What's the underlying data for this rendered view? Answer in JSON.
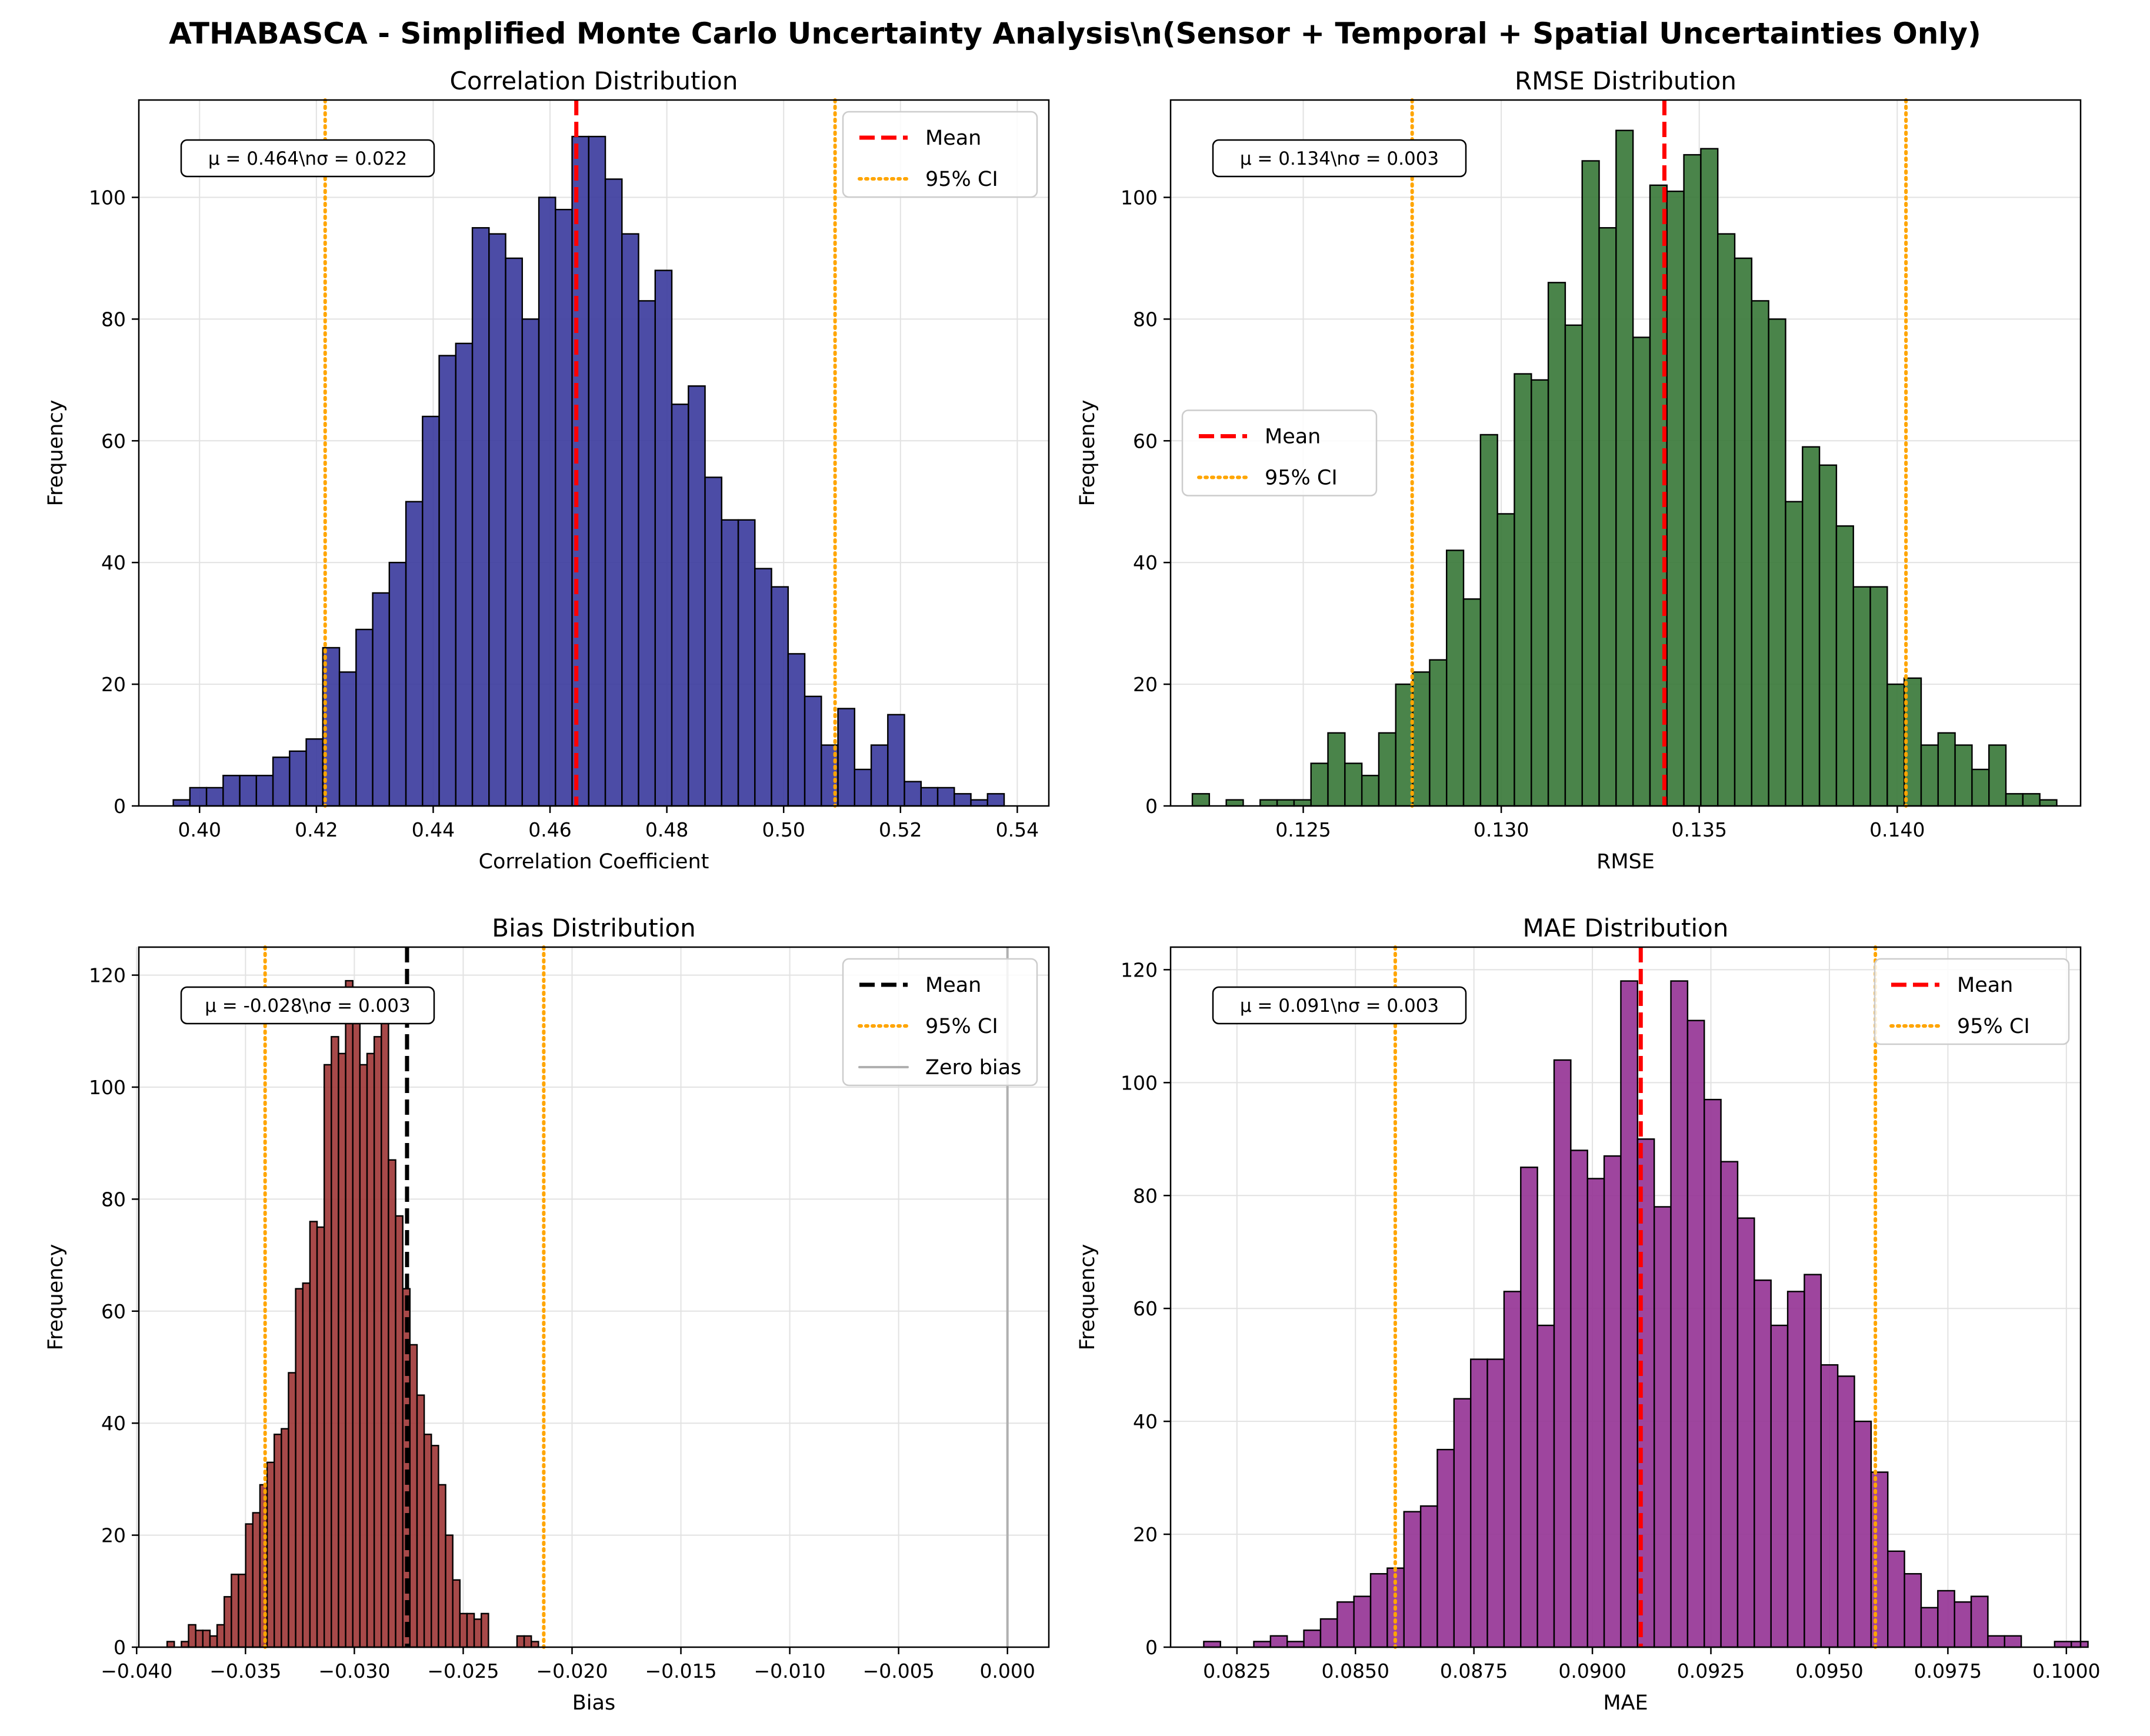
{
  "figure_title": "ATHABASCA - Simplified Monte Carlo Uncertainty Analysis\\n(Sensor + Temporal + Spatial Uncertainties Only)",
  "colors": {
    "ci": "#ffa500",
    "mean_red": "#ff0000",
    "mean_black": "#000000",
    "zero": "#b0b0b0"
  },
  "chart_data": [
    {
      "id": "corr",
      "type": "bar",
      "title": "Correlation Distribution",
      "xlabel": "Correlation Coefficient",
      "ylabel": "Frequency",
      "xlim": [
        0.3896,
        0.5454
      ],
      "ylim": [
        0,
        116
      ],
      "xticks": [
        0.4,
        0.42,
        0.44,
        0.46,
        0.48,
        0.5,
        0.52,
        0.54
      ],
      "xtick_labels": [
        "0.40",
        "0.42",
        "0.44",
        "0.46",
        "0.48",
        "0.50",
        "0.52",
        "0.54"
      ],
      "yticks": [
        0,
        20,
        40,
        60,
        80,
        100
      ],
      "ytick_labels": [
        "0",
        "20",
        "40",
        "60",
        "80",
        "100"
      ],
      "bar_color": "#3d3d9e",
      "bin_start": 0.3955,
      "bin_width": 0.002845,
      "counts": [
        1,
        3,
        3,
        5,
        5,
        5,
        8,
        9,
        11,
        26,
        22,
        29,
        35,
        40,
        50,
        64,
        74,
        76,
        95,
        94,
        90,
        80,
        100,
        98,
        110,
        110,
        103,
        94,
        83,
        88,
        66,
        69,
        54,
        47,
        47,
        39,
        36,
        25,
        18,
        10,
        16,
        6,
        10,
        15,
        4,
        3,
        3,
        2,
        1,
        2
      ],
      "mean": 0.4645,
      "ci": [
        0.4215,
        0.5088
      ],
      "mean_color": "#ff0000",
      "stats_text": "μ = 0.464\\nσ = 0.022",
      "legend": {
        "position": "upper-right",
        "items": [
          "Mean",
          "95% CI"
        ]
      }
    },
    {
      "id": "rmse",
      "type": "bar",
      "title": "RMSE Distribution",
      "xlabel": "RMSE",
      "ylabel": "Frequency",
      "xlim": [
        0.12165,
        0.14463
      ],
      "ylim": [
        0,
        116
      ],
      "xticks": [
        0.125,
        0.13,
        0.135,
        0.14
      ],
      "xtick_labels": [
        "0.125",
        "0.130",
        "0.135",
        "0.140"
      ],
      "yticks": [
        0,
        20,
        40,
        60,
        80,
        100
      ],
      "ytick_labels": [
        "0",
        "20",
        "40",
        "60",
        "80",
        "100"
      ],
      "bar_color": "#3b7a3b",
      "bin_start": 0.1222,
      "bin_width": 0.000428,
      "counts": [
        2,
        0,
        1,
        0,
        1,
        1,
        1,
        7,
        12,
        7,
        5,
        12,
        20,
        22,
        24,
        42,
        34,
        61,
        48,
        71,
        70,
        86,
        79,
        106,
        95,
        111,
        77,
        102,
        101,
        107,
        108,
        94,
        90,
        83,
        80,
        50,
        59,
        56,
        46,
        36,
        36,
        20,
        21,
        10,
        12,
        10,
        6,
        10,
        2,
        2,
        1
      ],
      "mean": 0.13412,
      "ci": [
        0.12775,
        0.14022
      ],
      "mean_color": "#ff0000",
      "stats_text": "μ = 0.134\\nσ = 0.003",
      "legend": {
        "position": "center-left",
        "items": [
          "Mean",
          "95% CI"
        ]
      }
    },
    {
      "id": "bias",
      "type": "bar",
      "title": "Bias Distribution",
      "xlabel": "Bias",
      "ylabel": "Frequency",
      "xlim": [
        -0.0399,
        0.0019
      ],
      "ylim": [
        0,
        125
      ],
      "xticks": [
        -0.04,
        -0.035,
        -0.03,
        -0.025,
        -0.02,
        -0.015,
        -0.01,
        -0.005,
        0.0
      ],
      "xtick_labels": [
        "−0.040",
        "−0.035",
        "−0.030",
        "−0.025",
        "−0.020",
        "−0.015",
        "−0.010",
        "−0.005",
        "0.000"
      ],
      "yticks": [
        0,
        20,
        40,
        60,
        80,
        100,
        120
      ],
      "ytick_labels": [
        "0",
        "20",
        "40",
        "60",
        "80",
        "100",
        "120"
      ],
      "bar_color": "#a03a3a",
      "bin_start": -0.0386,
      "bin_width": 0.000328,
      "counts": [
        1,
        0,
        1,
        4,
        3,
        3,
        2,
        4,
        9,
        13,
        13,
        22,
        24,
        29,
        33,
        38,
        39,
        49,
        64,
        65,
        76,
        75,
        104,
        109,
        106,
        119,
        115,
        104,
        106,
        109,
        112,
        87,
        77,
        64,
        54,
        45,
        38,
        36,
        29,
        20,
        12,
        6,
        6,
        5,
        6,
        0,
        0,
        0,
        0,
        2,
        2,
        1
      ],
      "mean": -0.02758,
      "ci": [
        -0.0341,
        -0.0213
      ],
      "mean_color": "#000000",
      "zero_line": 0.0,
      "stats_text": "μ = -0.028\\nσ = 0.003",
      "legend": {
        "position": "upper-right",
        "items": [
          "Mean",
          "95% CI",
          "Zero bias"
        ]
      }
    },
    {
      "id": "mae",
      "type": "bar",
      "title": "MAE Distribution",
      "xlabel": "MAE",
      "ylabel": "Frequency",
      "xlim": [
        0.0811,
        0.1003
      ],
      "ylim": [
        0,
        124
      ],
      "xticks": [
        0.0825,
        0.085,
        0.0875,
        0.09,
        0.0925,
        0.095,
        0.0975,
        0.1
      ],
      "xtick_labels": [
        "0.0825",
        "0.0850",
        "0.0875",
        "0.0900",
        "0.0925",
        "0.0950",
        "0.0975",
        "0.1000"
      ],
      "yticks": [
        0,
        20,
        40,
        60,
        80,
        100,
        120
      ],
      "ytick_labels": [
        "0",
        "20",
        "40",
        "60",
        "80",
        "100",
        "120"
      ],
      "bar_color": "#963596",
      "bin_start": 0.0818,
      "bin_width": 0.000352,
      "counts": [
        1,
        0,
        0,
        1,
        2,
        1,
        3,
        5,
        8,
        9,
        13,
        14,
        24,
        25,
        35,
        44,
        51,
        51,
        63,
        85,
        57,
        104,
        88,
        83,
        87,
        118,
        90,
        78,
        118,
        111,
        97,
        86,
        76,
        65,
        57,
        63,
        66,
        50,
        48,
        40,
        31,
        17,
        13,
        7,
        10,
        8,
        9,
        2,
        2,
        0,
        0,
        1,
        1
      ],
      "mean": 0.09102,
      "ci": [
        0.08584,
        0.09597
      ],
      "mean_color": "#ff0000",
      "stats_text": "μ = 0.091\\nσ = 0.003",
      "legend": {
        "position": "upper-right",
        "items": [
          "Mean",
          "95% CI"
        ]
      }
    }
  ]
}
